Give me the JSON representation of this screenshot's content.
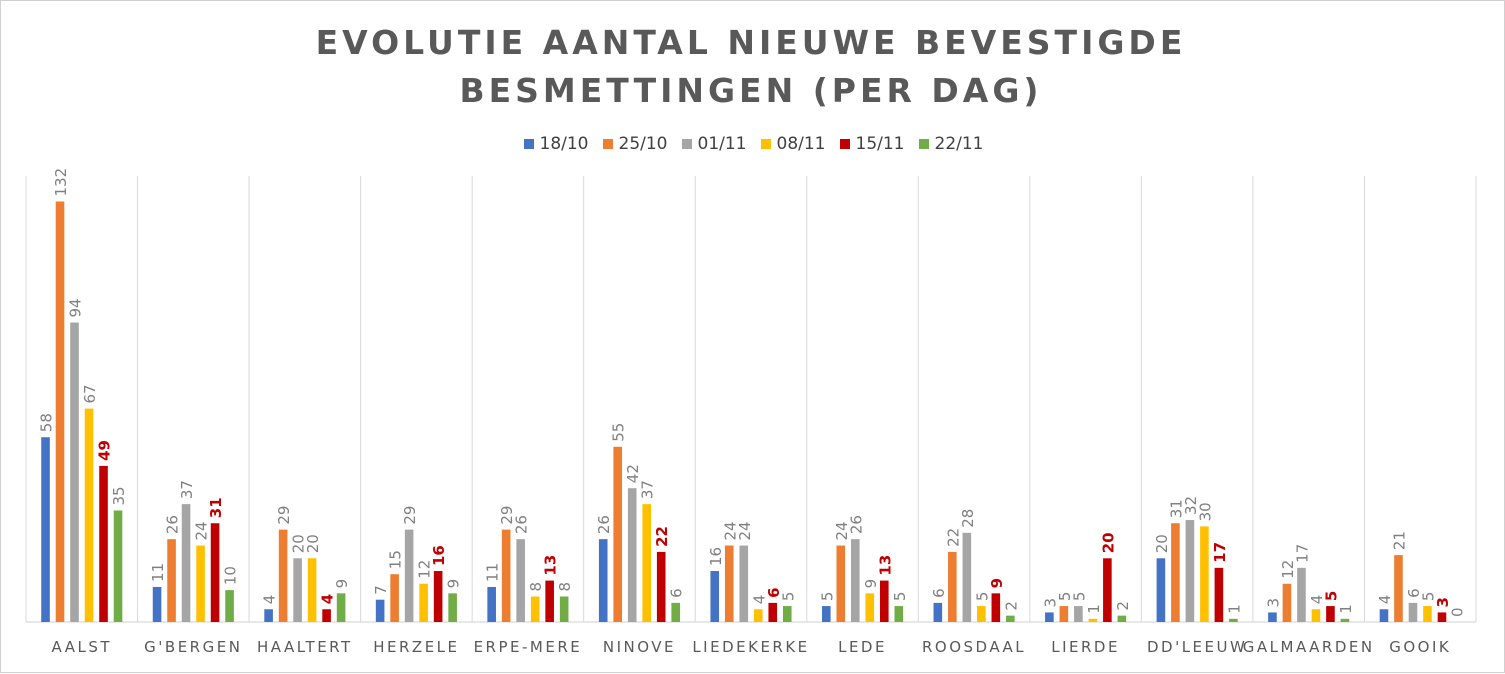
{
  "chart_data": {
    "type": "bar",
    "title": "EVOLUTIE AANTAL NIEUWE BEVESTIGDE BESMETTINGEN (PER DAG)",
    "xlabel": "",
    "ylabel": "",
    "ylim": [
      0,
      140
    ],
    "grid": "vertical category separators",
    "legend_position": "top",
    "categories": [
      "AALST",
      "G'BERGEN",
      "HAALTERT",
      "HERZELE",
      "ERPE-MERE",
      "NINOVE",
      "LIEDEKERKE",
      "LEDE",
      "ROOSDAAL",
      "LIERDE",
      "DD'LEEUW",
      "GALMAARDEN",
      "GOOIK"
    ],
    "series": [
      {
        "name": "18/10",
        "color": "#4472C4",
        "label_color": "#808080",
        "values": [
          58,
          11,
          4,
          7,
          11,
          26,
          16,
          5,
          6,
          3,
          20,
          3,
          4
        ]
      },
      {
        "name": "25/10",
        "color": "#ED7D31",
        "label_color": "#808080",
        "values": [
          132,
          26,
          29,
          15,
          29,
          55,
          24,
          24,
          22,
          5,
          31,
          12,
          21
        ]
      },
      {
        "name": "01/11",
        "color": "#A5A5A5",
        "label_color": "#808080",
        "values": [
          94,
          37,
          20,
          29,
          26,
          42,
          24,
          26,
          28,
          5,
          32,
          17,
          6
        ]
      },
      {
        "name": "08/11",
        "color": "#FFC000",
        "label_color": "#808080",
        "values": [
          67,
          24,
          20,
          12,
          8,
          37,
          4,
          9,
          5,
          1,
          30,
          4,
          5
        ]
      },
      {
        "name": "15/11",
        "color": "#C00000",
        "label_color": "#C00000",
        "values": [
          49,
          31,
          4,
          16,
          13,
          22,
          6,
          13,
          9,
          20,
          17,
          5,
          3
        ]
      },
      {
        "name": "22/11",
        "color": "#70AD47",
        "label_color": "#808080",
        "values": [
          35,
          10,
          9,
          9,
          8,
          6,
          5,
          5,
          2,
          2,
          1,
          1,
          0
        ]
      }
    ]
  }
}
